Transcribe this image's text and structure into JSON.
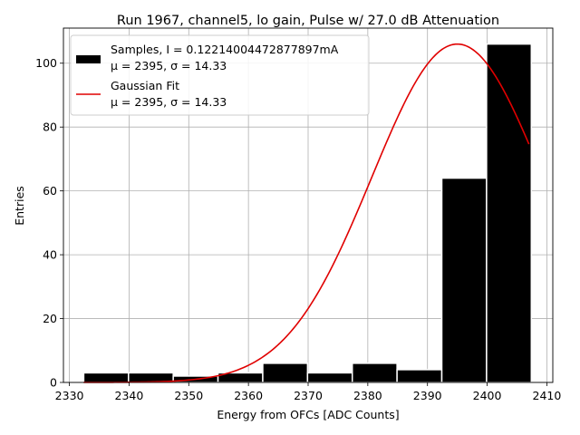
{
  "chart_data": {
    "type": "bar",
    "title": "Run 1967, channel5, lo gain, Pulse w/ 27.0 dB Attenuation",
    "xlabel": "Energy from OFCs [ADC Counts]",
    "ylabel": "Entries",
    "xlim": [
      2329,
      2411
    ],
    "ylim": [
      0,
      111
    ],
    "xticks": [
      "2330",
      "2340",
      "2350",
      "2360",
      "2370",
      "2380",
      "2390",
      "2400",
      "2410"
    ],
    "yticks": [
      "0",
      "20",
      "40",
      "60",
      "80",
      "100"
    ],
    "grid": true,
    "legend_position": "upper-left",
    "histogram": {
      "name": "Samples, I = 0.12214004472877897mA",
      "stats": "μ = 2395, σ = 14.33",
      "color": "#000000",
      "edgecolor": "#ffffff",
      "bins": [
        {
          "x0": 2332.4,
          "x1": 2339.9,
          "count": 3
        },
        {
          "x0": 2339.9,
          "x1": 2347.4,
          "count": 3
        },
        {
          "x0": 2347.4,
          "x1": 2354.9,
          "count": 2
        },
        {
          "x0": 2354.9,
          "x1": 2362.4,
          "count": 3
        },
        {
          "x0": 2362.4,
          "x1": 2369.9,
          "count": 6
        },
        {
          "x0": 2369.9,
          "x1": 2377.4,
          "count": 3
        },
        {
          "x0": 2377.4,
          "x1": 2384.9,
          "count": 6
        },
        {
          "x0": 2384.9,
          "x1": 2392.4,
          "count": 4
        },
        {
          "x0": 2392.4,
          "x1": 2399.9,
          "count": 64
        },
        {
          "x0": 2399.9,
          "x1": 2407.4,
          "count": 106
        }
      ]
    },
    "fit": {
      "name": "Gaussian Fit",
      "stats": "μ = 2395, σ = 14.33",
      "color": "#e00000",
      "mu": 2395,
      "sigma": 14.33,
      "amplitude": 106,
      "x_range": [
        2332.4,
        2407
      ]
    }
  }
}
